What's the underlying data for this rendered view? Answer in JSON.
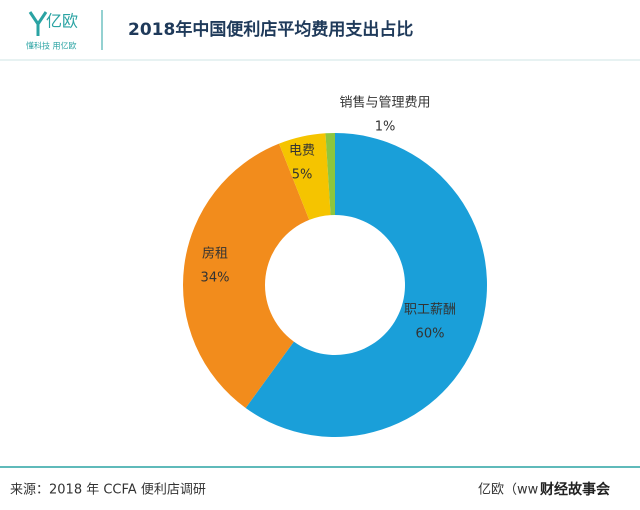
{
  "header": {
    "logo": "亿欧",
    "slogan": "懂科技 用亿欧"
  },
  "chart_data": {
    "type": "donut",
    "title": "2018年中国便利店平均费用支出占比",
    "categories": [
      "职工薪酬",
      "房租",
      "电费",
      "销售与管理费用"
    ],
    "values": [
      60,
      34,
      5,
      1
    ],
    "value_labels": [
      "60%",
      "34%",
      "5%",
      "1%"
    ],
    "colors": [
      "#1a9fd9",
      "#f28c1c",
      "#f5c400",
      "#8dc63f"
    ]
  },
  "footer": {
    "source": "来源：2018 年 CCFA 便利店调研",
    "brand": "亿欧（ww",
    "watermark": "财经故事会"
  }
}
